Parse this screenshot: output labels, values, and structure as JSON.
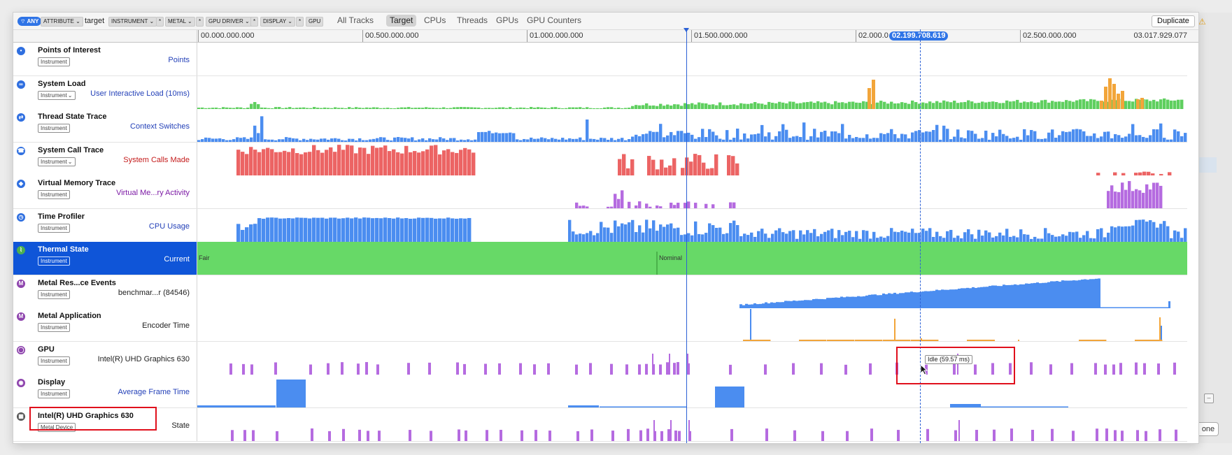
{
  "filter_bar": {
    "any_label": "ANY",
    "tokens": [
      "ATTRIBUTE ⌄",
      "INSTRUMENT ⌄",
      "*",
      "METAL ⌄",
      "*",
      "GPU DRIVER ⌄",
      "*",
      "DISPLAY ⌄",
      "*",
      "GPU"
    ],
    "target_text": "target"
  },
  "tabs": [
    {
      "label": "All Tracks",
      "active": false
    },
    {
      "label": "Target",
      "active": true
    },
    {
      "label": "CPUs",
      "active": false
    },
    {
      "label": "Threads",
      "active": false
    },
    {
      "label": "GPUs",
      "active": false
    },
    {
      "label": "GPU Counters",
      "active": false
    }
  ],
  "duplicate_label": "Duplicate",
  "right_panel": {
    "pill_label": "one"
  },
  "ruler": {
    "ticks": [
      "00.000.000.000",
      "00.500.000.000",
      "01.000.000.000",
      "01.500.000.000",
      "02.000.0",
      "02.500.000.000"
    ],
    "end_label": "03.017.929.077",
    "hover_time": "02.199.708.619"
  },
  "tracks": [
    {
      "name": "Points of Interest",
      "tag": "Instrument",
      "tag_chevron": false,
      "sub": "Points",
      "sub_color": "blue",
      "icon_color": "#2f6fe0",
      "icon": "•"
    },
    {
      "name": "System Load",
      "tag": "Instrument",
      "tag_chevron": true,
      "sub": "User Interactive Load (10ms)",
      "sub_color": "blue",
      "icon_color": "#2f6fe0",
      "icon": "∞"
    },
    {
      "name": "Thread State Trace",
      "tag": "Instrument",
      "tag_chevron": false,
      "sub": "Context Switches",
      "sub_color": "blue",
      "icon_color": "#2f6fe0",
      "icon": "⇄"
    },
    {
      "name": "System Call Trace",
      "tag": "Instrument",
      "tag_chevron": true,
      "sub": "System Calls Made",
      "sub_color": "red",
      "icon_color": "#2f6fe0",
      "icon": "☎"
    },
    {
      "name": "Virtual Memory Trace",
      "tag": "Instrument",
      "tag_chevron": false,
      "sub": "Virtual Me...ry Activity",
      "sub_color": "purple",
      "icon_color": "#2f6fe0",
      "icon": "◆"
    },
    {
      "name": "Time Profiler",
      "tag": "Instrument",
      "tag_chevron": false,
      "sub": "CPU Usage",
      "sub_color": "blue",
      "icon_color": "#2f6fe0",
      "icon": "◷"
    },
    {
      "name": "Thermal State",
      "tag": "Instrument",
      "tag_chevron": false,
      "sub": "Current",
      "sub_color": "dark",
      "icon_color": "#4caf50",
      "icon": "⌇",
      "selected": true
    },
    {
      "name": "Metal Res...ce Events",
      "tag": "Instrument",
      "tag_chevron": false,
      "sub": "benchmar...r (84546)",
      "sub_color": "dark",
      "icon_color": "#8e44ad",
      "icon": "M"
    },
    {
      "name": "Metal Application",
      "tag": "Instrument",
      "tag_chevron": false,
      "sub": "Encoder Time",
      "sub_color": "dark",
      "icon_color": "#8e44ad",
      "icon": "M"
    },
    {
      "name": "GPU",
      "tag": "Instrument",
      "tag_chevron": false,
      "sub": "Intel(R) UHD Graphics 630",
      "sub_color": "dark",
      "icon_color": "#8e44ad",
      "icon": "◯"
    },
    {
      "name": "Display",
      "tag": "Instrument",
      "tag_chevron": false,
      "sub": "Average Frame Time",
      "sub_color": "blue",
      "icon_color": "#8e44ad",
      "icon": "◉"
    },
    {
      "name": "Intel(R) UHD Graphics 630",
      "tag": "Metal Device",
      "tag_chevron": false,
      "sub": "State",
      "sub_color": "dark",
      "icon_color": "#555555",
      "icon": "▦"
    }
  ],
  "thermal_states": [
    "Fair",
    "Nominal"
  ],
  "tooltip": "Idle (59.57 ms)",
  "colors": {
    "accent": "#2f74e6",
    "selection": "#0f55d8",
    "green": "#5fcf5f",
    "orange": "#f2a53a",
    "blue_bar": "#4b8df0",
    "red_bar": "#ec6464",
    "purple_bar": "#b56be0",
    "highlight": "#e0101c"
  }
}
